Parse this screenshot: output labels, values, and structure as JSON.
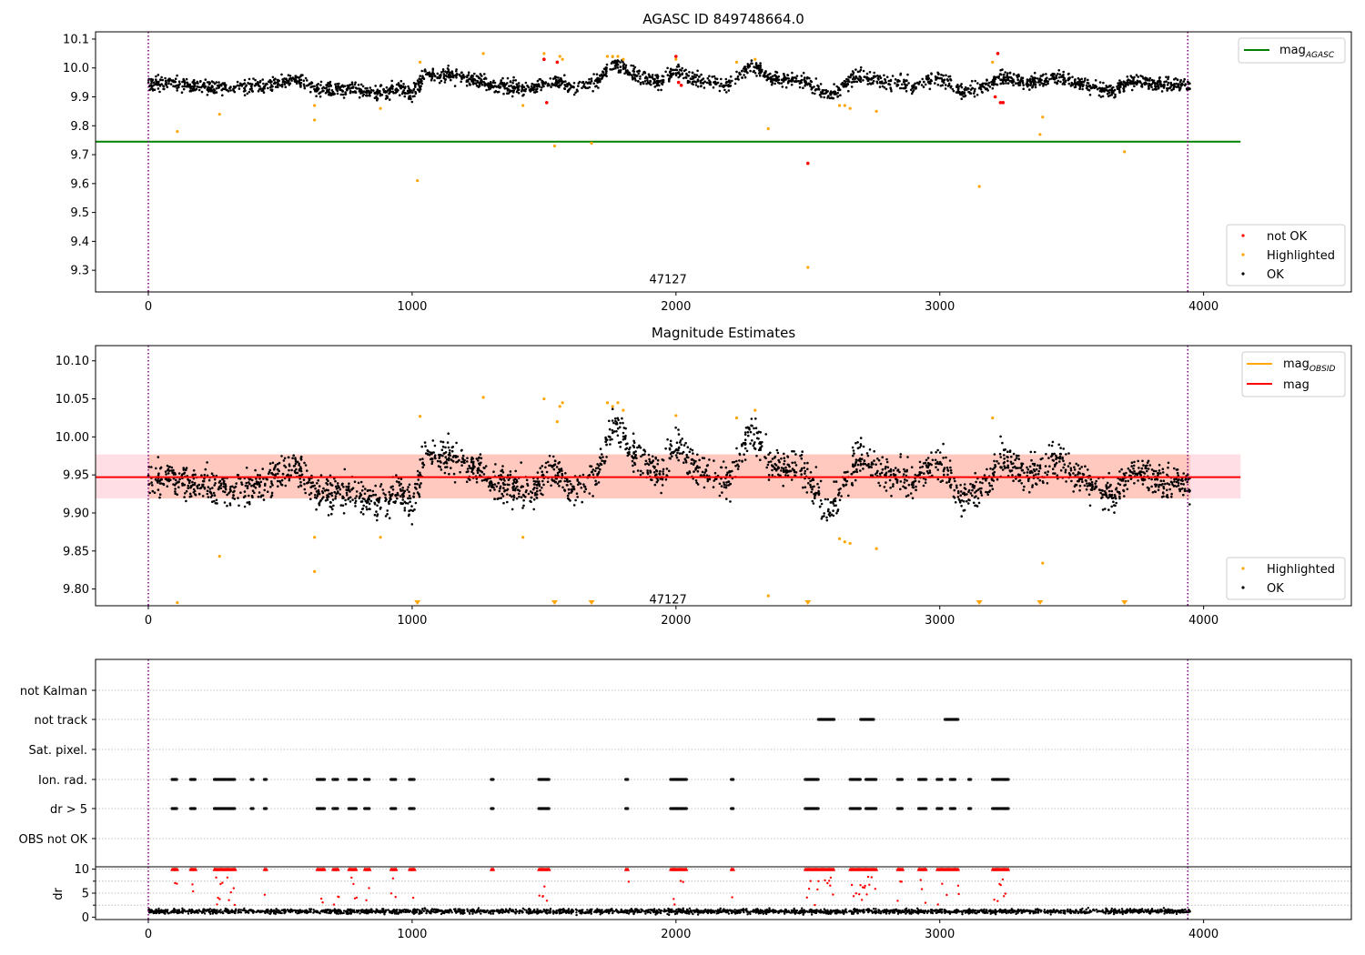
{
  "chart_data": [
    {
      "type": "scatter",
      "title": "AGASC ID 849748664.0",
      "xlim": [
        -200,
        4560
      ],
      "ylim": [
        9.225,
        10.125
      ],
      "xticks": [
        0,
        1000,
        2000,
        3000,
        4000
      ],
      "yticks": [
        9.3,
        9.4,
        9.5,
        9.6,
        9.7,
        9.8,
        9.9,
        10.0,
        10.1
      ],
      "ytick_labels": [
        "9.3",
        "9.4",
        "9.5",
        "9.6",
        "9.7",
        "9.8",
        "9.9",
        "10.0",
        "10.1"
      ],
      "vlines": [
        0,
        3940
      ],
      "hline": {
        "name": "mag_AGASC",
        "y": 9.745,
        "x": [
          -200,
          4140
        ],
        "color": "#008000"
      },
      "annotation": {
        "text": "47127",
        "x": 1970,
        "y": 9.27
      },
      "legends": [
        {
          "position": "upper right",
          "items": [
            {
              "label": "mag",
              "sub": "AGASC",
              "kind": "line",
              "color": "#008000"
            }
          ]
        },
        {
          "position": "lower right",
          "items": [
            {
              "label": "not OK",
              "kind": "dot",
              "color": "#ff0000"
            },
            {
              "label": "Highlighted",
              "kind": "dot",
              "color": "#ffa500"
            },
            {
              "label": "OK",
              "kind": "dot",
              "color": "#000000"
            }
          ]
        }
      ],
      "series": [
        {
          "name": "OK",
          "color": "#000000",
          "trend": [
            [
              0,
              9.95
            ],
            [
              150,
              9.94
            ],
            [
              300,
              9.93
            ],
            [
              450,
              9.94
            ],
            [
              560,
              9.96
            ],
            [
              650,
              9.92
            ],
            [
              750,
              9.93
            ],
            [
              850,
              9.91
            ],
            [
              950,
              9.93
            ],
            [
              1000,
              9.91
            ],
            [
              1050,
              9.98
            ],
            [
              1150,
              9.97
            ],
            [
              1250,
              9.96
            ],
            [
              1300,
              9.94
            ],
            [
              1450,
              9.93
            ],
            [
              1550,
              9.96
            ],
            [
              1600,
              9.93
            ],
            [
              1700,
              9.95
            ],
            [
              1760,
              10.02
            ],
            [
              1850,
              9.97
            ],
            [
              1950,
              9.95
            ],
            [
              2000,
              9.99
            ],
            [
              2080,
              9.96
            ],
            [
              2200,
              9.94
            ],
            [
              2280,
              10.01
            ],
            [
              2380,
              9.96
            ],
            [
              2480,
              9.96
            ],
            [
              2580,
              9.9
            ],
            [
              2680,
              9.97
            ],
            [
              2800,
              9.95
            ],
            [
              2900,
              9.94
            ],
            [
              3000,
              9.97
            ],
            [
              3080,
              9.92
            ],
            [
              3160,
              9.93
            ],
            [
              3230,
              9.97
            ],
            [
              3350,
              9.95
            ],
            [
              3450,
              9.97
            ],
            [
              3560,
              9.94
            ],
            [
              3650,
              9.92
            ],
            [
              3740,
              9.96
            ],
            [
              3840,
              9.94
            ],
            [
              3950,
              9.94
            ]
          ],
          "spread": 0.055,
          "count": 2500
        },
        {
          "name": "Highlighted",
          "color": "#ffa500",
          "points": [
            [
              110,
              9.78
            ],
            [
              270,
              9.84
            ],
            [
              630,
              9.82
            ],
            [
              630,
              9.87
            ],
            [
              880,
              9.86
            ],
            [
              1020,
              9.61
            ],
            [
              1030,
              10.02
            ],
            [
              1270,
              10.05
            ],
            [
              1420,
              9.87
            ],
            [
              1500,
              10.05
            ],
            [
              1540,
              9.73
            ],
            [
              1550,
              10.02
            ],
            [
              1560,
              10.04
            ],
            [
              1570,
              10.03
            ],
            [
              1680,
              9.74
            ],
            [
              1740,
              10.04
            ],
            [
              1760,
              10.04
            ],
            [
              1780,
              10.04
            ],
            [
              1800,
              10.03
            ],
            [
              2000,
              10.03
            ],
            [
              2230,
              10.02
            ],
            [
              2300,
              10.03
            ],
            [
              2350,
              9.79
            ],
            [
              2500,
              9.31
            ],
            [
              2620,
              9.87
            ],
            [
              2640,
              9.87
            ],
            [
              2660,
              9.86
            ],
            [
              2760,
              9.85
            ],
            [
              3150,
              9.59
            ],
            [
              3200,
              10.02
            ],
            [
              3380,
              9.77
            ],
            [
              3390,
              9.83
            ],
            [
              3700,
              9.71
            ]
          ]
        },
        {
          "name": "not OK",
          "color": "#ff0000",
          "points": [
            [
              1500,
              10.03
            ],
            [
              1510,
              9.88
            ],
            [
              1550,
              10.02
            ],
            [
              2000,
              10.04
            ],
            [
              2010,
              9.95
            ],
            [
              2020,
              9.94
            ],
            [
              2500,
              9.67
            ],
            [
              3220,
              10.05
            ],
            [
              3230,
              9.88
            ],
            [
              3240,
              9.88
            ],
            [
              3210,
              9.9
            ]
          ]
        }
      ]
    },
    {
      "type": "scatter",
      "title": "Magnitude Estimates",
      "xlim": [
        -200,
        4560
      ],
      "ylim": [
        9.778,
        10.12
      ],
      "xticks": [
        0,
        1000,
        2000,
        3000,
        4000
      ],
      "yticks": [
        9.8,
        9.85,
        9.9,
        9.95,
        10.0,
        10.05,
        10.1
      ],
      "ytick_labels": [
        "9.80",
        "9.85",
        "9.90",
        "9.95",
        "10.00",
        "10.05",
        "10.10"
      ],
      "vlines": [
        0,
        3940
      ],
      "hline": {
        "name": "mag",
        "y": 9.947,
        "x": [
          -200,
          4140
        ],
        "color": "#ff0000"
      },
      "bands": [
        {
          "x": [
            -200,
            4140
          ],
          "y": [
            9.919,
            9.977
          ],
          "color": "#ffc0cb",
          "opacity": 0.5
        },
        {
          "x": [
            0,
            3950
          ],
          "y": [
            9.919,
            9.977
          ],
          "color": "#ffa07a",
          "opacity": 0.35
        }
      ],
      "annotation": {
        "text": "47127",
        "x": 1970,
        "y": 9.787
      },
      "legends": [
        {
          "position": "upper right",
          "items": [
            {
              "label": "mag",
              "sub": "OBSID",
              "kind": "line",
              "color": "#ffa500"
            },
            {
              "label": "mag",
              "kind": "line",
              "color": "#ff0000"
            }
          ]
        },
        {
          "position": "lower right",
          "items": [
            {
              "label": "Highlighted",
              "kind": "dot",
              "color": "#ffa500"
            },
            {
              "label": "OK",
              "kind": "dot",
              "color": "#000000"
            }
          ]
        }
      ],
      "series": [
        {
          "name": "OK",
          "color": "#000000",
          "trend": "same as panel 1",
          "spread": 0.05,
          "count": 2500
        },
        {
          "name": "Highlighted",
          "color": "#ffa500",
          "points": [
            [
              110,
              9.782
            ],
            [
              270,
              9.843
            ],
            [
              630,
              9.823
            ],
            [
              630,
              9.868
            ],
            [
              880,
              9.868
            ],
            [
              1030,
              10.027
            ],
            [
              1270,
              10.052
            ],
            [
              1420,
              9.868
            ],
            [
              1500,
              10.05
            ],
            [
              1550,
              10.02
            ],
            [
              1560,
              10.04
            ],
            [
              1570,
              10.045
            ],
            [
              1740,
              10.045
            ],
            [
              1760,
              10.04
            ],
            [
              1780,
              10.045
            ],
            [
              1800,
              10.035
            ],
            [
              2000,
              10.028
            ],
            [
              2230,
              10.025
            ],
            [
              2300,
              10.035
            ],
            [
              2350,
              9.791
            ],
            [
              2620,
              9.866
            ],
            [
              2640,
              9.862
            ],
            [
              2660,
              9.86
            ],
            [
              2760,
              9.853
            ],
            [
              3200,
              10.025
            ],
            [
              3390,
              9.834
            ]
          ]
        },
        {
          "name": "Highlighted (off-axis)",
          "color": "#ffa500",
          "marker": "triangle-down",
          "x": [
            1020,
            1540,
            1680,
            2500,
            3150,
            3380,
            3700
          ]
        }
      ]
    },
    {
      "type": "scatter",
      "title": "",
      "xlim": [
        -200,
        4560
      ],
      "categories": [
        "not Kalman",
        "not track",
        "Sat. pixel.",
        "Ion. rad.",
        "dr > 5",
        "OBS not OK"
      ],
      "vlines": [
        0,
        3940
      ],
      "flags": {
        "not Kalman": [],
        "not track": [
          [
            2540,
            2600
          ],
          [
            2700,
            2750
          ],
          [
            3020,
            3070
          ]
        ],
        "Sat. pixel.": [],
        "Ion. rad.": [
          [
            90,
            110
          ],
          [
            160,
            180
          ],
          [
            250,
            330
          ],
          [
            390,
            400
          ],
          [
            440,
            450
          ],
          [
            640,
            670
          ],
          [
            700,
            720
          ],
          [
            760,
            790
          ],
          [
            820,
            840
          ],
          [
            920,
            940
          ],
          [
            990,
            1010
          ],
          [
            1300,
            1310
          ],
          [
            1480,
            1520
          ],
          [
            1810,
            1820
          ],
          [
            1980,
            2040
          ],
          [
            2210,
            2220
          ],
          [
            2490,
            2540
          ],
          [
            2660,
            2700
          ],
          [
            2720,
            2760
          ],
          [
            2840,
            2860
          ],
          [
            2920,
            2950
          ],
          [
            2990,
            3010
          ],
          [
            3040,
            3060
          ],
          [
            3110,
            3120
          ],
          [
            3200,
            3260
          ]
        ],
        "dr > 5": [
          [
            90,
            110
          ],
          [
            160,
            180
          ],
          [
            250,
            330
          ],
          [
            390,
            400
          ],
          [
            440,
            450
          ],
          [
            640,
            670
          ],
          [
            700,
            720
          ],
          [
            760,
            790
          ],
          [
            820,
            840
          ],
          [
            920,
            940
          ],
          [
            990,
            1010
          ],
          [
            1300,
            1310
          ],
          [
            1480,
            1520
          ],
          [
            1810,
            1820
          ],
          [
            1980,
            2040
          ],
          [
            2210,
            2220
          ],
          [
            2490,
            2540
          ],
          [
            2660,
            2700
          ],
          [
            2720,
            2760
          ],
          [
            2840,
            2860
          ],
          [
            2920,
            2950
          ],
          [
            2990,
            3010
          ],
          [
            3040,
            3060
          ],
          [
            3110,
            3120
          ],
          [
            3200,
            3260
          ]
        ],
        "OBS not OK": []
      }
    },
    {
      "type": "scatter",
      "title": "",
      "ylabel": "dr",
      "xlim": [
        -200,
        4560
      ],
      "ylim": [
        -0.5,
        10.5
      ],
      "yticks": [
        0,
        5,
        10
      ],
      "ytick_labels": [
        "0",
        "5",
        "10"
      ],
      "xticks": [
        0,
        1000,
        2000,
        3000,
        4000
      ],
      "vlines": [
        0,
        3940
      ],
      "series": [
        {
          "name": "dr OK",
          "color": "#000000",
          "baseline": 1.2,
          "spread": 0.8,
          "count": 2500
        },
        {
          "name": "dr not OK",
          "color": "#ff0000",
          "clipped_at": 10,
          "clusters": [
            [
              90,
              110
            ],
            [
              160,
              180
            ],
            [
              250,
              330
            ],
            [
              440,
              450
            ],
            [
              640,
              670
            ],
            [
              700,
              720
            ],
            [
              760,
              790
            ],
            [
              820,
              840
            ],
            [
              920,
              940
            ],
            [
              990,
              1010
            ],
            [
              1300,
              1310
            ],
            [
              1480,
              1520
            ],
            [
              1810,
              1820
            ],
            [
              1980,
              2040
            ],
            [
              2210,
              2220
            ],
            [
              2490,
              2600
            ],
            [
              2660,
              2760
            ],
            [
              2840,
              2860
            ],
            [
              2920,
              2950
            ],
            [
              2990,
              3070
            ],
            [
              3200,
              3260
            ]
          ]
        }
      ]
    }
  ]
}
